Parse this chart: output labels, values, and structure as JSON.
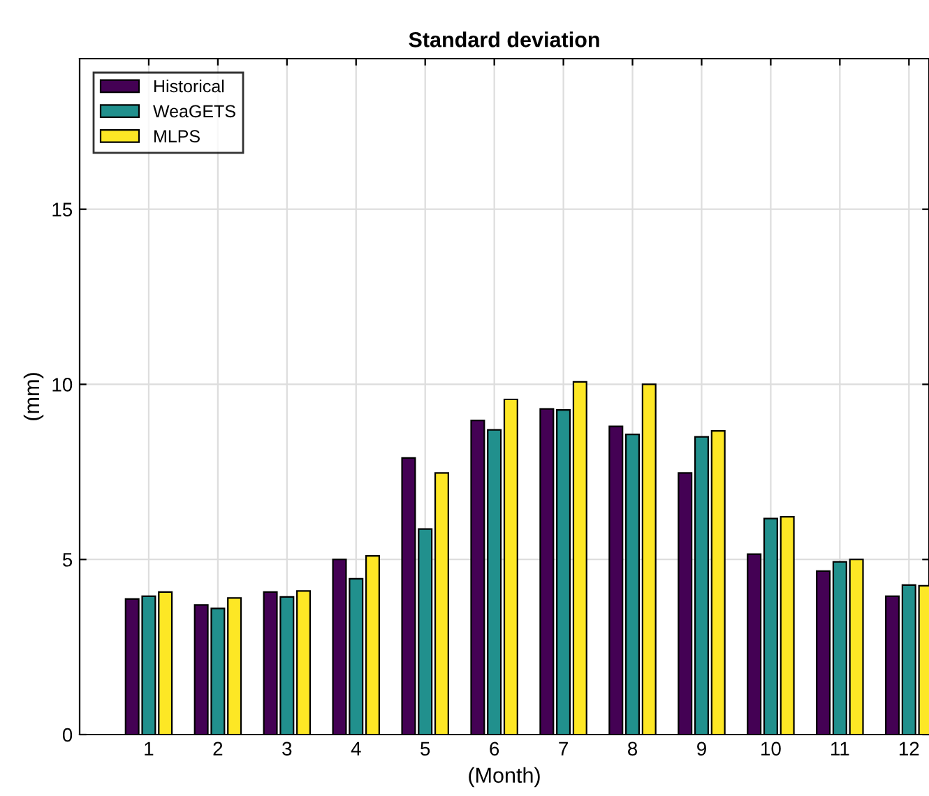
{
  "chart_data": {
    "type": "bar",
    "title": "Standard deviation",
    "xlabel": "(Month)",
    "ylabel": "(mm)",
    "categories": [
      "1",
      "2",
      "3",
      "4",
      "5",
      "6",
      "7",
      "8",
      "9",
      "10",
      "11",
      "12"
    ],
    "series": [
      {
        "name": "Historical",
        "color": "#440154",
        "values": [
          3.87,
          3.7,
          4.07,
          5.0,
          7.9,
          8.97,
          9.3,
          8.8,
          7.47,
          5.15,
          4.67,
          3.95
        ]
      },
      {
        "name": "WeaGETS",
        "color": "#21908d",
        "values": [
          3.95,
          3.6,
          3.93,
          4.45,
          5.87,
          8.7,
          9.27,
          8.57,
          8.5,
          6.17,
          4.93,
          4.27
        ]
      },
      {
        "name": "MLPS",
        "color": "#fde725",
        "values": [
          4.07,
          3.9,
          4.1,
          5.1,
          7.47,
          9.57,
          10.07,
          10.0,
          8.67,
          6.22,
          5.0,
          4.25
        ]
      }
    ],
    "ylim": [
      0,
      19.3
    ],
    "yticks": [
      0,
      5,
      10,
      15
    ],
    "grid": true,
    "legend": "top left"
  }
}
